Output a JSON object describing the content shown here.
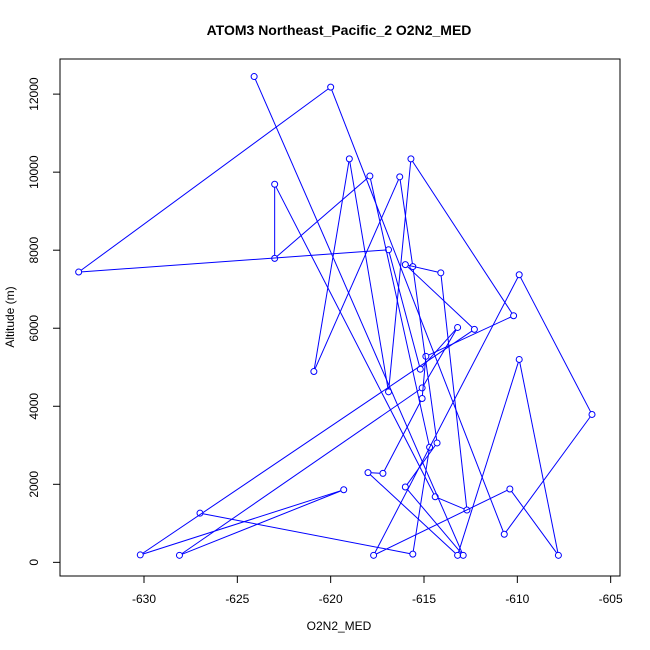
{
  "chart_data": {
    "type": "line",
    "title": "ATOM3 Northeast_Pacific_2 O2N2_MED",
    "xlabel": "O2N2_MED",
    "ylabel": "Altitude (m)",
    "xlim": [
      -634.5,
      -604.5
    ],
    "ylim": [
      -350,
      12900
    ],
    "x_ticks": [
      -630,
      -625,
      -620,
      -615,
      -610,
      -605
    ],
    "x_tick_labels": [
      "-630",
      "-625",
      "-620",
      "-615",
      "-610",
      "-605"
    ],
    "y_ticks": [
      0,
      2000,
      4000,
      6000,
      8000,
      10000,
      12000
    ],
    "y_tick_labels": [
      "0",
      "2000",
      "4000",
      "6000",
      "8000",
      "10000",
      "12000"
    ],
    "line_color": "#0000ff",
    "marker": "open-circle",
    "grid": false,
    "legend": "none",
    "series": [
      {
        "x": [
          -624.1,
          -612.9,
          -616.0,
          -614.3,
          -615.6,
          -616.3,
          -620.9,
          -619.0,
          -616.9,
          -615.7,
          -610.2,
          -614.9,
          -615.1,
          -617.2,
          -618.0,
          -613.2,
          -609.9,
          -607.8,
          -610.4,
          -617.7,
          -609.9,
          -606.0,
          -610.7,
          -620.0,
          -633.5,
          -616.9,
          -615.2,
          -613.2,
          -615.1,
          -628.1,
          -619.3,
          -630.2,
          -612.3,
          -616.0,
          -614.1,
          -612.7,
          -614.4,
          -623.0,
          -623.0,
          -617.9,
          -614.7,
          -615.6,
          -627.0
        ],
        "y": [
          12450,
          180,
          1930,
          3060,
          7580,
          9880,
          4890,
          10340,
          4370,
          10340,
          6320,
          5280,
          4200,
          2280,
          2300,
          180,
          5200,
          180,
          1880,
          180,
          7370,
          3790,
          720,
          12180,
          7440,
          8010,
          4950,
          6020,
          4470,
          180,
          1860,
          190,
          5970,
          7630,
          7420,
          1340,
          1680,
          9690,
          7790,
          9900,
          2950,
          210,
          1260
        ]
      }
    ]
  }
}
